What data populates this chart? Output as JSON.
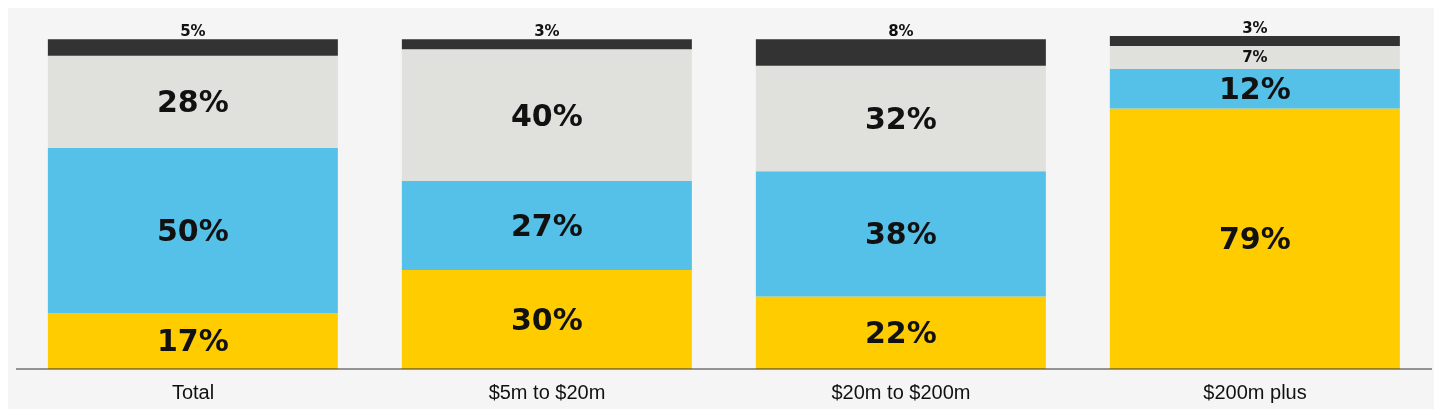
{
  "chart_data": {
    "type": "bar",
    "stacked": true,
    "categories": [
      "Total",
      "$5m to $20m",
      "$20m to $200m",
      "$200m plus"
    ],
    "series": [
      {
        "color": "#ffcc00",
        "values": [
          17,
          30,
          22,
          79
        ],
        "value_labels": [
          "17%",
          "30%",
          "22%",
          "79%"
        ]
      },
      {
        "color": "#55c0e8",
        "values": [
          50,
          27,
          38,
          12
        ],
        "value_labels": [
          "50%",
          "27%",
          "38%",
          "12%"
        ]
      },
      {
        "color": "#e0e0dc",
        "values": [
          28,
          40,
          32,
          7
        ],
        "value_labels": [
          "28%",
          "40%",
          "32%",
          "7%"
        ]
      },
      {
        "color": "#333333",
        "values": [
          5,
          3,
          8,
          3
        ],
        "value_labels": [
          "5%",
          "3%",
          "8%",
          "3%"
        ]
      }
    ],
    "grid": false,
    "legend": false
  }
}
